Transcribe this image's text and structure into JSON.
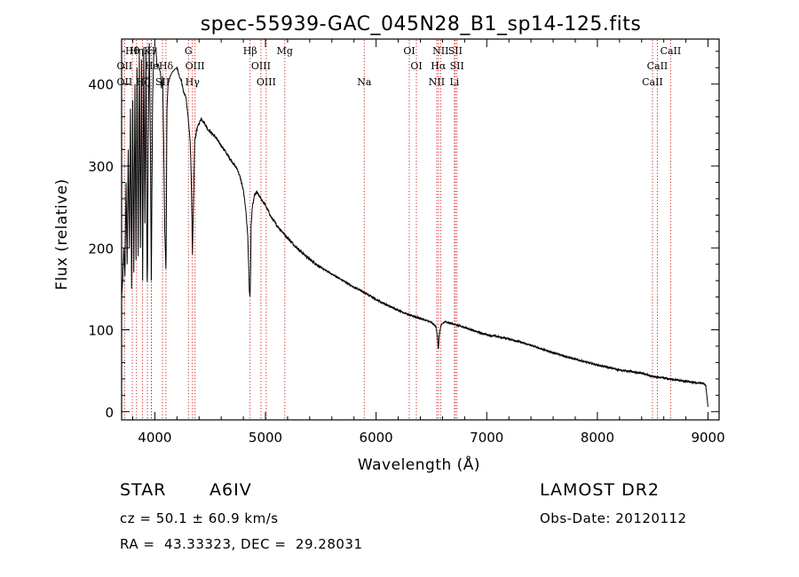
{
  "chart_data": {
    "type": "line",
    "title": "spec-55939-GAC_045N28_B1_sp14-125.fits",
    "xlabel": "Wavelength (Å)",
    "ylabel": "Flux (relative)",
    "xlim": [
      3700,
      9100
    ],
    "ylim": [
      -10,
      455
    ],
    "xticks": [
      4000,
      5000,
      6000,
      7000,
      8000,
      9000
    ],
    "yticks": [
      0,
      100,
      200,
      300,
      400
    ],
    "grid": false,
    "legend": "none",
    "series": [
      {
        "x": [
          3700,
          3710,
          3720,
          3730,
          3740,
          3750,
          3760,
          3770,
          3780,
          3790,
          3800,
          3810,
          3820,
          3830,
          3840,
          3850,
          3860,
          3870,
          3880,
          3890,
          3900,
          3910,
          3920,
          3930,
          3933,
          3940,
          3950,
          3960,
          3968,
          3980,
          3990,
          4000,
          4010,
          4020,
          4030,
          4040,
          4050,
          4060,
          4070,
          4080,
          4090,
          4101,
          4110,
          4120,
          4140,
          4160,
          4180,
          4200,
          4220,
          4240,
          4260,
          4280,
          4300,
          4320,
          4330,
          4340,
          4350,
          4360,
          4380,
          4400,
          4420,
          4450,
          4480,
          4500,
          4550,
          4600,
          4650,
          4700,
          4750,
          4780,
          4800,
          4820,
          4840,
          4850,
          4855,
          4861,
          4866,
          4870,
          4880,
          4900,
          4920,
          4950,
          5000,
          5050,
          5100,
          5150,
          5200,
          5300,
          5400,
          5500,
          5600,
          5700,
          5800,
          5900,
          6000,
          6100,
          6200,
          6300,
          6400,
          6500,
          6540,
          6555,
          6563,
          6570,
          6585,
          6620,
          6700,
          6800,
          6900,
          7000,
          7200,
          7400,
          7600,
          7800,
          8000,
          8200,
          8400,
          8500,
          8600,
          8700,
          8800,
          8900,
          8950,
          8980,
          9000
        ],
        "y": [
          140,
          160,
          200,
          165,
          280,
          180,
          320,
          200,
          370,
          150,
          380,
          170,
          400,
          185,
          420,
          190,
          440,
          200,
          430,
          160,
          445,
          230,
          440,
          165,
          155,
          330,
          450,
          330,
          160,
          380,
          435,
          440,
          445,
          420,
          425,
          418,
          415,
          395,
          410,
          330,
          220,
          170,
          370,
          400,
          410,
          415,
          418,
          420,
          410,
          405,
          390,
          385,
          360,
          330,
          280,
          190,
          260,
          330,
          345,
          352,
          358,
          352,
          345,
          342,
          335,
          325,
          315,
          305,
          295,
          282,
          270,
          250,
          215,
          170,
          145,
          140,
          175,
          225,
          248,
          264,
          268,
          262,
          252,
          238,
          228,
          220,
          212,
          198,
          186,
          176,
          168,
          160,
          152,
          145,
          137,
          130,
          124,
          118,
          114,
          109,
          104,
          92,
          75,
          93,
          105,
          110,
          107,
          103,
          98,
          94,
          89,
          81,
          72,
          64,
          57,
          51,
          47,
          43,
          41,
          39,
          37,
          35,
          35,
          32,
          5
        ]
      }
    ],
    "lines": [
      {
        "name": "Hθ",
        "wavelength": 3797,
        "row": 0
      },
      {
        "name": "Hη",
        "wavelength": 3835,
        "row": 0
      },
      {
        "name": "OII",
        "wavelength": 3727,
        "row": 1
      },
      {
        "name": "OII",
        "wavelength": 3727,
        "row": 2
      },
      {
        "name": "Hζ",
        "wavelength": 3889,
        "row": 2
      },
      {
        "name": "K",
        "wavelength": 3933,
        "row": 0
      },
      {
        "name": "H",
        "wavelength": 3968,
        "row": 0
      },
      {
        "name": "Hε",
        "wavelength": 3970,
        "row": 1
      },
      {
        "name": "SII",
        "wavelength": 4070,
        "row": 2
      },
      {
        "name": "Hδ",
        "wavelength": 4101,
        "row": 1
      },
      {
        "name": "G",
        "wavelength": 4304,
        "row": 0
      },
      {
        "name": "OIII",
        "wavelength": 4363,
        "row": 1
      },
      {
        "name": "Hγ",
        "wavelength": 4340,
        "row": 2
      },
      {
        "name": "Hβ",
        "wavelength": 4861,
        "row": 0
      },
      {
        "name": "OIII",
        "wavelength": 4959,
        "row": 1
      },
      {
        "name": "OIII",
        "wavelength": 5007,
        "row": 2
      },
      {
        "name": "Mg",
        "wavelength": 5175,
        "row": 0
      },
      {
        "name": "Na",
        "wavelength": 5893,
        "row": 2
      },
      {
        "name": "OI",
        "wavelength": 6300,
        "row": 0
      },
      {
        "name": "OI",
        "wavelength": 6364,
        "row": 1
      },
      {
        "name": "NII",
        "wavelength": 6548,
        "row": 2
      },
      {
        "name": "NII",
        "wavelength": 6583,
        "row": 0
      },
      {
        "name": "Hα",
        "wavelength": 6563,
        "row": 1
      },
      {
        "name": "SII",
        "wavelength": 6716,
        "row": 0
      },
      {
        "name": "SII",
        "wavelength": 6731,
        "row": 1
      },
      {
        "name": "Li",
        "wavelength": 6708,
        "row": 2
      },
      {
        "name": "CaII",
        "wavelength": 8662,
        "row": 0
      },
      {
        "name": "CaII",
        "wavelength": 8542,
        "row": 1
      },
      {
        "name": "CaII",
        "wavelength": 8498,
        "row": 2
      }
    ]
  },
  "info": {
    "class": "STAR",
    "subclass": "A6IV",
    "survey": "LAMOST DR2",
    "cz": "cz = 50.1 ± 60.9 km/s",
    "obs_date": "Obs-Date: 20120112",
    "radec": "RA =  43.33323, DEC =  29.28031"
  },
  "colors": {
    "line_marker": "#cc2222",
    "spectrum": "#000000"
  }
}
